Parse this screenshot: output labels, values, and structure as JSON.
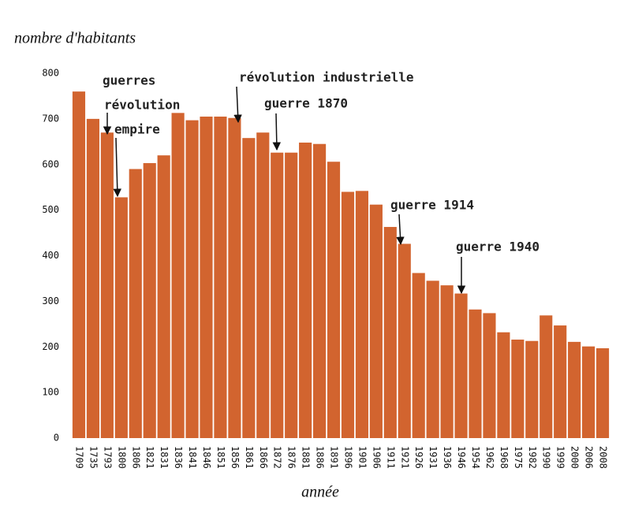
{
  "chart_data": {
    "type": "bar",
    "y_label": "nombre d'habitants",
    "x_label": "année",
    "categories": [
      "1709",
      "1735",
      "1793",
      "1800",
      "1806",
      "1821",
      "1831",
      "1836",
      "1841",
      "1846",
      "1851",
      "1856",
      "1861",
      "1866",
      "1872",
      "1876",
      "1881",
      "1886",
      "1891",
      "1896",
      "1901",
      "1906",
      "1911",
      "1921",
      "1926",
      "1931",
      "1936",
      "1946",
      "1954",
      "1962",
      "1968",
      "1975",
      "1982",
      "1990",
      "1999",
      "2000",
      "2006",
      "2008"
    ],
    "values": [
      760,
      700,
      670,
      528,
      590,
      603,
      620,
      713,
      697,
      705,
      705,
      702,
      658,
      670,
      626,
      626,
      648,
      645,
      606,
      540,
      542,
      512,
      463,
      426,
      362,
      345,
      335,
      317,
      282,
      274,
      232,
      216,
      213,
      269,
      247,
      211,
      201,
      197
    ],
    "color": "#d2642f",
    "ylim": [
      0,
      800
    ],
    "yticks": [
      0,
      100,
      200,
      300,
      400,
      500,
      600,
      700,
      800
    ],
    "grid": false,
    "annotations": [
      "guerres",
      "révolution",
      "empire",
      "révolution industrielle",
      "guerre 1870",
      "guerre 1914",
      "guerre 1940"
    ]
  }
}
